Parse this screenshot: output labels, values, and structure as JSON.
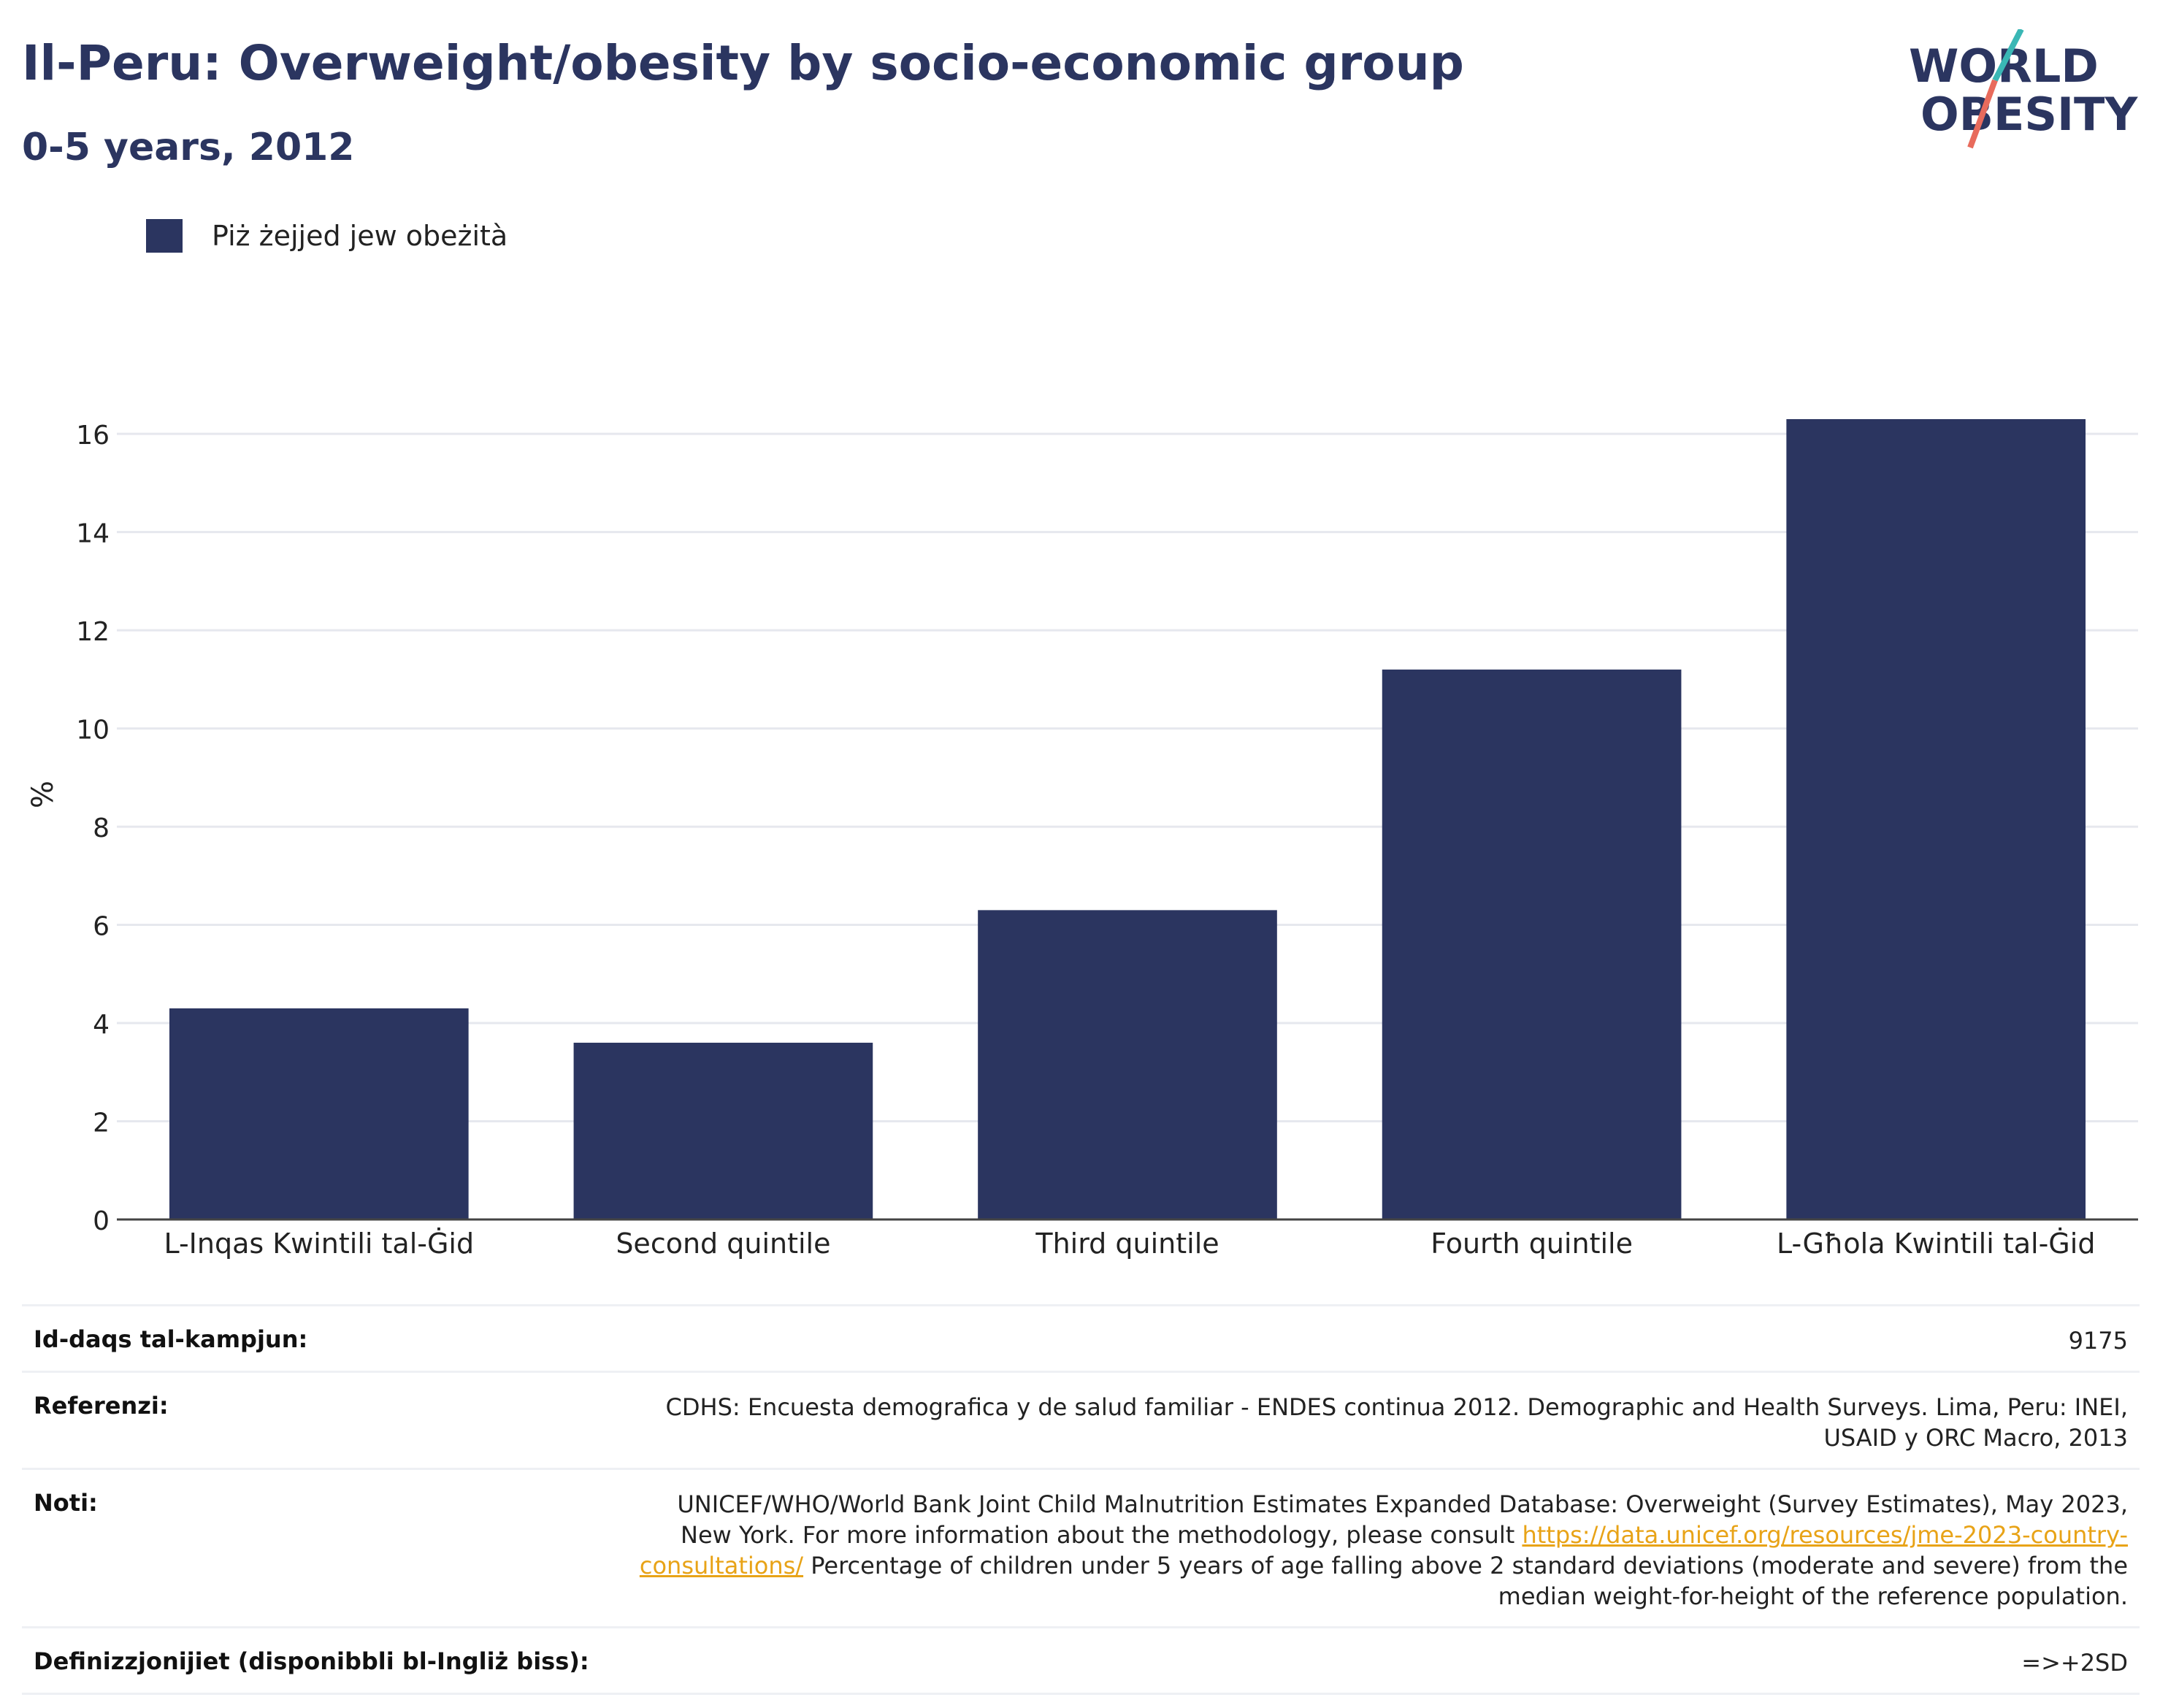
{
  "header": {
    "title": "Il-Peru: Overweight/obesity by socio-economic group",
    "subtitle": "0-5 years, 2012"
  },
  "logo": {
    "line1": "WORLD",
    "line2": "OBESITY"
  },
  "colors": {
    "bar": "#2b3560",
    "title": "#2b3560",
    "logo_teal": "#3ab7b5",
    "logo_coral": "#e86b5c"
  },
  "chart_data": {
    "type": "bar",
    "categories": [
      "L-Inqas Kwintili tal-Ġid",
      "Second quintile",
      "Third quintile",
      "Fourth quintile",
      "L-Għola Kwintili tal-Ġid"
    ],
    "series": [
      {
        "name": "Piż żejjed jew obeżità",
        "values": [
          4.3,
          3.6,
          6.3,
          11.2,
          16.3
        ]
      }
    ],
    "ylabel": "%",
    "xlabel": "",
    "ylim": [
      0,
      17.4
    ],
    "yticks": [
      0,
      2,
      4,
      6,
      8,
      10,
      12,
      14,
      16
    ],
    "grid": true,
    "legend_position": "top-left"
  },
  "info": {
    "sample_size": {
      "label": "Id-daqs tal-kampjun:",
      "value": "9175"
    },
    "references": {
      "label": "Referenzi:",
      "value": "CDHS: Encuesta demografica y de salud familiar - ENDES continua 2012. Demographic and Health Surveys. Lima, Peru: INEI, USAID y ORC Macro, 2013"
    },
    "notes": {
      "label": "Noti:",
      "text_before": "UNICEF/WHO/World Bank Joint Child Malnutrition Estimates Expanded Database: Overweight (Survey Estimates), May 2023, New York. For more information about the methodology, please consult ",
      "link": "https://data.unicef.org/resources/jme-2023-country-consultations/",
      "text_after": " Percentage of children under 5 years of age falling above 2 standard deviations (moderate and severe) from the median weight-for-height of the reference population."
    },
    "definitions": {
      "label": "Definizzjonijiet (disponibbli bl-Ingliż biss):",
      "value": "=>+2SD"
    }
  }
}
